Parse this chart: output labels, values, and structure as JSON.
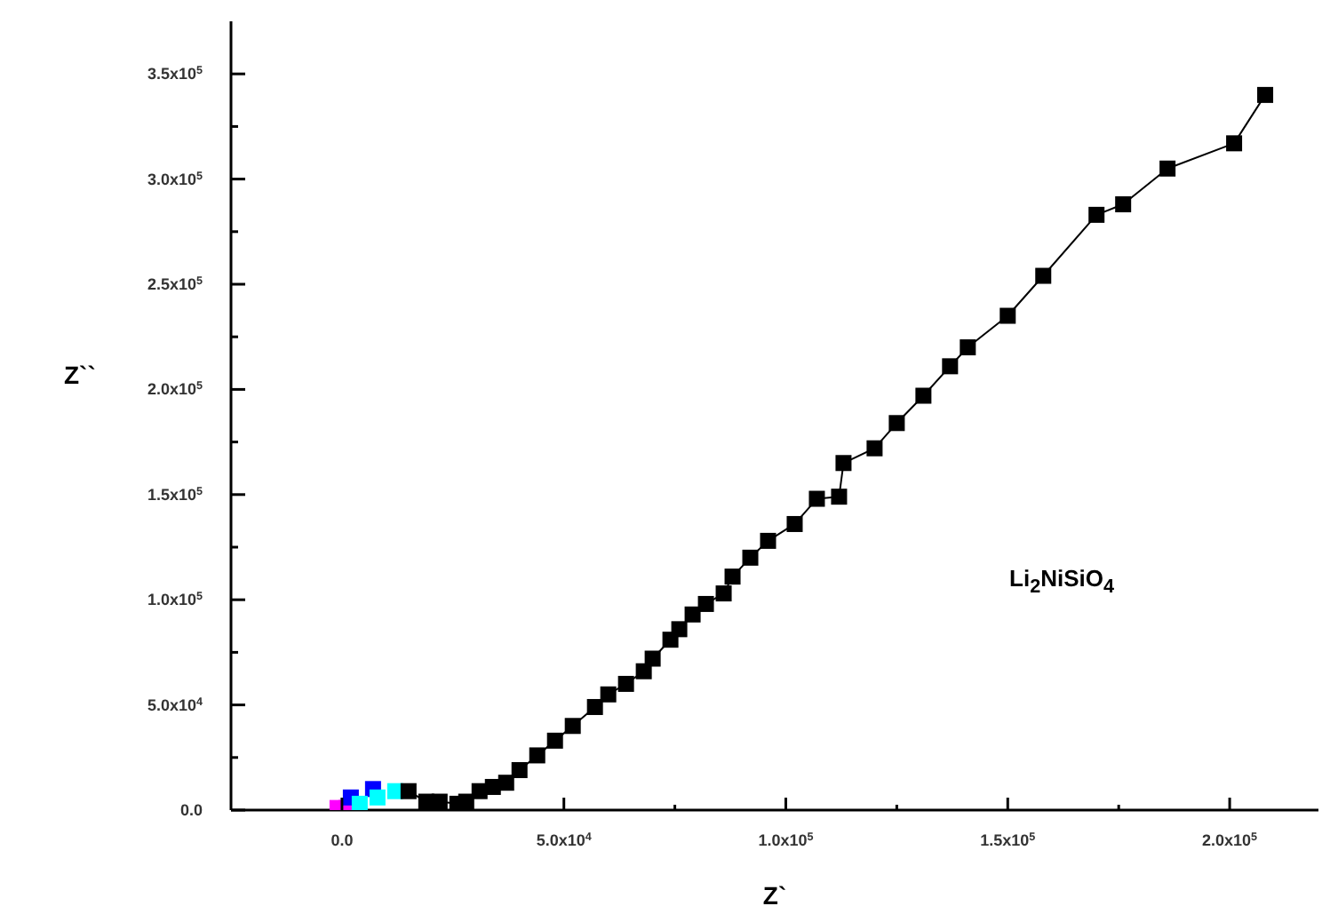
{
  "chart_data": {
    "type": "line",
    "xlabel": "Z`",
    "ylabel": "Z``",
    "annotations": [
      "Li$_{2}$NiSiO$_{4}$"
    ],
    "marker": "square",
    "xlim": [
      -25000,
      220000
    ],
    "ylim": [
      0,
      375000
    ],
    "xticks": [
      {
        "value": 0,
        "label": "0.0"
      },
      {
        "value": 25000,
        "label": null
      },
      {
        "value": 50000,
        "label": "5.0x10$^{4}$"
      },
      {
        "value": 75000,
        "label": null
      },
      {
        "value": 100000,
        "label": "1.0x10$^{5}$"
      },
      {
        "value": 125000,
        "label": null
      },
      {
        "value": 150000,
        "label": "1.5x10$^{5}$"
      },
      {
        "value": 175000,
        "label": null
      },
      {
        "value": 200000,
        "label": "2.0x10$^{5}$"
      }
    ],
    "yticks": [
      {
        "value": 0,
        "label": "0.0"
      },
      {
        "value": 25000,
        "label": null
      },
      {
        "value": 50000,
        "label": "5.0x10$^{4}$"
      },
      {
        "value": 75000,
        "label": null
      },
      {
        "value": 100000,
        "label": "1.0x10$^{5}$"
      },
      {
        "value": 125000,
        "label": null
      },
      {
        "value": 150000,
        "label": "1.5x10$^{5}$"
      },
      {
        "value": 175000,
        "label": null
      },
      {
        "value": 200000,
        "label": "2.0x10$^{5}$"
      },
      {
        "value": 225000,
        "label": null
      },
      {
        "value": 250000,
        "label": "2.5x10$^{5}$"
      },
      {
        "value": 275000,
        "label": null
      },
      {
        "value": 300000,
        "label": "3.0x10$^{5}$"
      },
      {
        "value": 325000,
        "label": null
      },
      {
        "value": 350000,
        "label": "3.5x10$^{5}$"
      }
    ],
    "series": [
      {
        "type": "scatter",
        "color": "#ff00ff",
        "x": [
          -1000,
          1000
        ],
        "values": [
          1000,
          1000
        ]
      },
      {
        "type": "scatter",
        "color": "#0000ff",
        "x": [
          2000,
          7000
        ],
        "values": [
          6000,
          10000
        ]
      },
      {
        "type": "scatter",
        "color": "#00ffff",
        "x": [
          4000,
          8000,
          12000
        ],
        "values": [
          3000,
          6000,
          9000
        ]
      },
      {
        "color": "#000000",
        "x": [
          15000,
          19000,
          22000,
          26000,
          28000,
          31000,
          34000,
          37000,
          40000,
          44000,
          48000,
          52000,
          57000,
          60000,
          64000,
          68000,
          70000,
          74000,
          76000,
          79000,
          82000,
          86000,
          88000,
          92000,
          96000,
          102000,
          107000,
          112000,
          113000,
          120000,
          125000,
          131000,
          137000,
          141000,
          150000,
          158000,
          170000,
          176000,
          186000,
          201000,
          208000
        ],
        "values": [
          9000,
          4000,
          4000,
          3000,
          4000,
          9000,
          11000,
          13000,
          19000,
          26000,
          33000,
          40000,
          49000,
          55000,
          60000,
          66000,
          72000,
          81000,
          86000,
          93000,
          98000,
          103000,
          111000,
          120000,
          128000,
          136000,
          148000,
          149000,
          165000,
          172000,
          184000,
          197000,
          211000,
          220000,
          235000,
          254000,
          283000,
          288000,
          305000,
          317000,
          340000
        ]
      }
    ]
  }
}
